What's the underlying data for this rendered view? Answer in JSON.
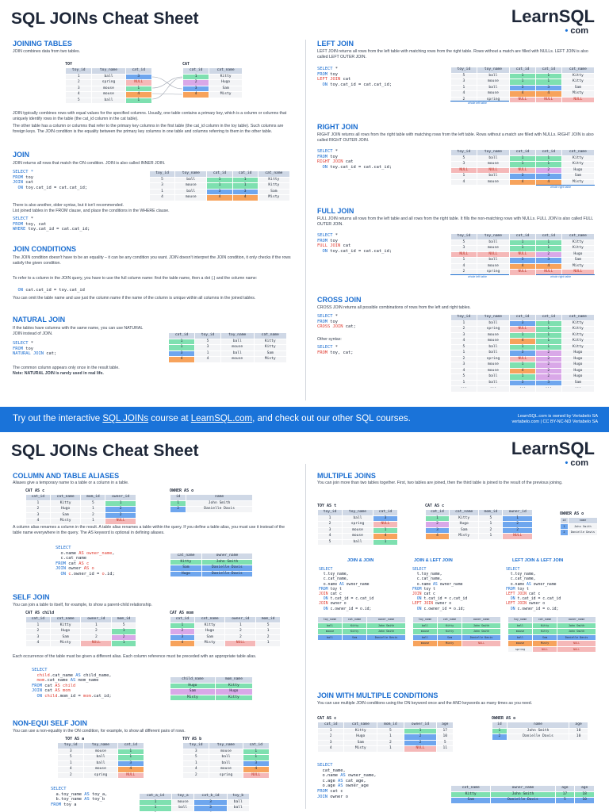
{
  "sheet1": {
    "title": "SQL JOINs Cheat Sheet",
    "logo_name": "LearnSQL",
    "logo_dom": "com",
    "joining_tables": {
      "heading": "JOINING TABLES",
      "intro": "JOIN combines data from two tables.",
      "toy_label": "TOY",
      "cat_label": "CAT",
      "toy_headers": [
        "toy_id",
        "toy_name",
        "cat_id"
      ],
      "toy_rows": [
        [
          "1",
          "ball",
          "3"
        ],
        [
          "2",
          "spring",
          "NULL"
        ],
        [
          "3",
          "mouse",
          "1"
        ],
        [
          "4",
          "mouse",
          "4"
        ],
        [
          "5",
          "ball",
          "1"
        ]
      ],
      "cat_headers": [
        "cat_id",
        "cat_name"
      ],
      "cat_rows": [
        [
          "1",
          "Kitty"
        ],
        [
          "2",
          "Hugo"
        ],
        [
          "3",
          "Sam"
        ],
        [
          "4",
          "Misty"
        ]
      ],
      "para1": "JOIN typically combines rows with equal values for the specified columns. Usually, one table contains a primary key, which is a column or columns that uniquely identify rows in the table (the cat_id column in the cat table).",
      "para2": "The other table has a column or columns that refer to the primary key columns in the first table (the cat_id column in the toy table). Such columns are foreign keys. The JOIN condition is the equality between the primary key columns in one table and columns referring to them in the other table."
    },
    "join": {
      "heading": "JOIN",
      "desc": "JOIN returns all rows that match the ON condition. JOIN is also called INNER JOIN.",
      "code": [
        "SELECT *",
        "FROM toy",
        "JOIN cat",
        "  ON toy.cat_id = cat.cat_id;"
      ],
      "headers": [
        "toy_id",
        "toy_name",
        "cat_id",
        "cat_id",
        "cat_name"
      ],
      "rows": [
        [
          "5",
          "ball",
          "1",
          "1",
          "Kitty"
        ],
        [
          "3",
          "mouse",
          "1",
          "1",
          "Kitty"
        ],
        [
          "1",
          "ball",
          "3",
          "3",
          "Sam"
        ],
        [
          "4",
          "mouse",
          "4",
          "4",
          "Misty"
        ]
      ],
      "alt1": "There is also another, older syntax, but it isn't recommended.",
      "alt2": "List joined tables in the FROM clause, and place the conditions in the WHERE clause.",
      "code2": [
        "SELECT *",
        "FROM toy, cat",
        "WHERE toy.cat_id = cat.cat_id;"
      ]
    },
    "conditions": {
      "heading": "JOIN CONDITIONS",
      "p1": "The JOIN condition doesn't have to be an equality – it can be any condition you want. JOIN doesn't interpret the JOIN condition, it only checks if the rows satisfy the given condition.",
      "p2": "To refer to a column in the JOIN query, you have to use the full column name: first the table name, then a dot (.) and the column name:",
      "code": "  ON cat.cat_id = toy.cat_id",
      "p3": "You can omit the table name and use just the column name if the name of the column is unique within all columns in the joined tables."
    },
    "natural": {
      "heading": "NATURAL JOIN",
      "p1": "If the tables have columns with the same name, you can use NATURAL JOIN instead of JOIN.",
      "code": [
        "SELECT *",
        "FROM toy",
        "NATURAL JOIN cat;"
      ],
      "headers": [
        "cat_id",
        "toy_id",
        "toy_name",
        "cat_name"
      ],
      "rows": [
        [
          "1",
          "5",
          "ball",
          "Kitty"
        ],
        [
          "1",
          "3",
          "mouse",
          "Kitty"
        ],
        [
          "3",
          "1",
          "ball",
          "Sam"
        ],
        [
          "4",
          "4",
          "mouse",
          "Misty"
        ]
      ],
      "p2": "The common column appears only once in the result table.",
      "note": "Note: NATURAL JOIN is rarely used in real life."
    },
    "left": {
      "heading": "LEFT JOIN",
      "desc": "LEFT JOIN returns all rows from the left table with matching rows from the right table. Rows without a match are filled with NULLs. LEFT JOIN is also called LEFT OUTER JOIN.",
      "code": [
        "SELECT *",
        "FROM toy",
        "LEFT JOIN cat",
        "  ON toy.cat_id = cat.cat_id;"
      ],
      "headers": [
        "toy_id",
        "toy_name",
        "cat_id",
        "cat_id",
        "cat_name"
      ],
      "rows": [
        [
          "5",
          "ball",
          "1",
          "1",
          "Kitty"
        ],
        [
          "3",
          "mouse",
          "1",
          "1",
          "Kitty"
        ],
        [
          "1",
          "ball",
          "3",
          "3",
          "Sam"
        ],
        [
          "4",
          "mouse",
          "4",
          "4",
          "Misty"
        ],
        [
          "2",
          "spring",
          "NULL",
          "NULL",
          "NULL"
        ]
      ],
      "label": "whole left table"
    },
    "right": {
      "heading": "RIGHT JOIN",
      "desc": "RIGHT JOIN returns all rows from the right table with matching rows from the left table. Rows without a match are filled with NULLs. RIGHT JOIN is also called RIGHT OUTER JOIN.",
      "code": [
        "SELECT *",
        "FROM toy",
        "RIGHT JOIN cat",
        "  ON toy.cat_id = cat.cat_id;"
      ],
      "headers": [
        "toy_id",
        "toy_name",
        "cat_id",
        "cat_id",
        "cat_name"
      ],
      "rows": [
        [
          "5",
          "ball",
          "1",
          "1",
          "Kitty"
        ],
        [
          "3",
          "mouse",
          "1",
          "1",
          "Kitty"
        ],
        [
          "NULL",
          "NULL",
          "NULL",
          "2",
          "Hugo"
        ],
        [
          "1",
          "ball",
          "3",
          "3",
          "Sam"
        ],
        [
          "4",
          "mouse",
          "4",
          "4",
          "Misty"
        ]
      ],
      "label": "whole right table"
    },
    "full": {
      "heading": "FULL JOIN",
      "desc": "FULL JOIN returns all rows from the left table and all rows from the right table. It fills the non-matching rows with NULLs. FULL JOIN is also called FULL OUTER JOIN.",
      "code": [
        "SELECT *",
        "FROM toy",
        "FULL JOIN cat",
        "  ON toy.cat_id = cat.cat_id;"
      ],
      "headers": [
        "toy_id",
        "toy_name",
        "cat_id",
        "cat_id",
        "cat_name"
      ],
      "rows": [
        [
          "5",
          "ball",
          "1",
          "1",
          "Kitty"
        ],
        [
          "3",
          "mouse",
          "1",
          "1",
          "Kitty"
        ],
        [
          "NULL",
          "NULL",
          "NULL",
          "2",
          "Hugo"
        ],
        [
          "1",
          "ball",
          "3",
          "3",
          "Sam"
        ],
        [
          "4",
          "mouse",
          "4",
          "4",
          "Misty"
        ],
        [
          "2",
          "spring",
          "NULL",
          "NULL",
          "NULL"
        ]
      ],
      "label_left": "whole left table",
      "label_right": "whole right table"
    },
    "cross": {
      "heading": "CROSS JOIN",
      "desc": "CROSS JOIN returns all possible combinations of rows from the left and right tables.",
      "code": [
        "SELECT *",
        "FROM toy",
        "CROSS JOIN cat;"
      ],
      "other": "Other syntax:",
      "code2": [
        "SELECT *",
        "FROM toy, cat;"
      ],
      "headers": [
        "toy_id",
        "toy_name",
        "cat_id",
        "cat_id",
        "cat_name"
      ],
      "rows": [
        [
          "1",
          "ball",
          "3",
          "1",
          "Kitty"
        ],
        [
          "2",
          "spring",
          "NULL",
          "1",
          "Kitty"
        ],
        [
          "3",
          "mouse",
          "1",
          "1",
          "Kitty"
        ],
        [
          "4",
          "mouse",
          "4",
          "1",
          "Kitty"
        ],
        [
          "5",
          "ball",
          "1",
          "1",
          "Kitty"
        ],
        [
          "1",
          "ball",
          "3",
          "2",
          "Hugo"
        ],
        [
          "2",
          "spring",
          "NULL",
          "2",
          "Hugo"
        ],
        [
          "3",
          "mouse",
          "1",
          "2",
          "Hugo"
        ],
        [
          "4",
          "mouse",
          "4",
          "2",
          "Hugo"
        ],
        [
          "5",
          "ball",
          "1",
          "2",
          "Hugo"
        ],
        [
          "1",
          "ball",
          "3",
          "3",
          "Sam"
        ],
        [
          "···",
          "···",
          "···",
          "···",
          "···"
        ]
      ]
    }
  },
  "banner": {
    "pre": "Try out the interactive ",
    "link1": "SQL JOINs",
    "mid": " course at ",
    "link2": "LearnSQL.com",
    "post": ", and check out our other SQL courses.",
    "right1": "LearnSQL.com is owned by Vertabelo SA",
    "right2": "vertabelo.com | CC BY-NC-ND Vertabelo SA"
  },
  "sheet2": {
    "title": "SQL JOINs Cheat Sheet",
    "logo_name": "LearnSQL",
    "logo_dom": "com",
    "aliases": {
      "heading": "COLUMN AND TABLE ALIASES",
      "desc": "Aliases give a temporary name to a table or a column in a table.",
      "cat_label": "CAT AS c",
      "owner_label": "OWNER AS o",
      "cat_headers": [
        "cat_id",
        "cat_name",
        "mom_id",
        "owner_id"
      ],
      "cat_rows": [
        [
          "1",
          "Kitty",
          "5",
          "1"
        ],
        [
          "2",
          "Hugo",
          "1",
          "2"
        ],
        [
          "3",
          "Sam",
          "2",
          "2"
        ],
        [
          "4",
          "Misty",
          "1",
          "NULL"
        ]
      ],
      "owner_headers": [
        "id",
        "name"
      ],
      "owner_rows": [
        [
          "1",
          "John Smith"
        ],
        [
          "2",
          "Danielle Davis"
        ]
      ],
      "p1": "A column alias renames a column in the result. A table alias renames a table within the query. If you define a table alias, you must use it instead of the table name everywhere in the query. The AS keyword is optional in defining aliases.",
      "code": [
        "SELECT",
        "  o.name AS owner_name,",
        "  c.cat_name",
        "FROM cat AS c",
        "JOIN owner AS o",
        "  ON c.owner_id = o.id;"
      ],
      "res_headers": [
        "cat_name",
        "owner_name"
      ],
      "res_rows": [
        [
          "Kitty",
          "John Smith"
        ],
        [
          "Sam",
          "Danielle Davis"
        ],
        [
          "Hugo",
          "Danielle Davis"
        ]
      ]
    },
    "self": {
      "heading": "SELF JOIN",
      "desc": "You can join a table to itself, for example, to show a parent-child relationship.",
      "child_label": "CAT AS child",
      "mom_label": "CAT AS mom",
      "headers": [
        "cat_id",
        "cat_name",
        "owner_id",
        "mom_id"
      ],
      "child_rows": [
        [
          "1",
          "Kitty",
          "1",
          "5"
        ],
        [
          "2",
          "Hugo",
          "2",
          "1"
        ],
        [
          "3",
          "Sam",
          "2",
          "2"
        ],
        [
          "4",
          "Misty",
          "NULL",
          "1"
        ]
      ],
      "mom_rows": [
        [
          "1",
          "Kitty",
          "1",
          "5"
        ],
        [
          "2",
          "Hugo",
          "2",
          "1"
        ],
        [
          "3",
          "Sam",
          "2",
          "2"
        ],
        [
          "4",
          "Misty",
          "NULL",
          "1"
        ]
      ],
      "p1": "Each occurrence of the table must be given a different alias. Each column reference must be preceded with an appropriate table alias.",
      "code": [
        "SELECT",
        "  child.cat_name AS child_name,",
        "  mom.cat_name AS mom_name",
        "FROM cat AS child",
        "JOIN cat AS mom",
        "  ON child.mom_id = mom.cat_id;"
      ],
      "res_headers": [
        "child_name",
        "mom_name"
      ],
      "res_rows": [
        [
          "Hugo",
          "Kitty"
        ],
        [
          "Sam",
          "Hugo"
        ],
        [
          "Misty",
          "Kitty"
        ]
      ]
    },
    "nonequi": {
      "heading": "NON-EQUI SELF JOIN",
      "desc": "You can use a non-equality in the ON condition, for example, to show all different pairs of rows.",
      "a_label": "TOY AS a",
      "b_label": "TOY AS b",
      "headers": [
        "toy_id",
        "toy_name",
        "cat_id"
      ],
      "a_rows": [
        [
          "3",
          "mouse",
          "1"
        ],
        [
          "5",
          "ball",
          "1"
        ],
        [
          "1",
          "ball",
          "3"
        ],
        [
          "4",
          "mouse",
          "4"
        ],
        [
          "2",
          "spring",
          "NULL"
        ]
      ],
      "b_rows": [
        [
          "3",
          "mouse",
          "1"
        ],
        [
          "5",
          "ball",
          "1"
        ],
        [
          "1",
          "ball",
          "3"
        ],
        [
          "4",
          "mouse",
          "4"
        ],
        [
          "2",
          "spring",
          "NULL"
        ]
      ],
      "code": [
        "SELECT",
        "  a.toy_name AS toy_a,",
        "  b.toy_name AS toy_b",
        "FROM toy a"
      ],
      "res_headers": [
        "cat_a_id",
        "toy_a",
        "cat_b_id",
        "toy_b"
      ],
      "res_rows": [
        [
          "1",
          "mouse",
          "3",
          "ball"
        ],
        [
          "1",
          "ball",
          "3",
          "ball"
        ],
        [
          "1",
          "mouse",
          "4",
          "mouse"
        ]
      ]
    },
    "multiple": {
      "heading": "MULTIPLE JOINS",
      "desc": "You can join more than two tables together. First, two tables are joined, then the third table is joined to the result of the previous joining.",
      "toy_label": "TOY AS t",
      "cat_label": "CAT AS c",
      "owner_label": "OWNER AS o",
      "toy_headers": [
        "toy_id",
        "toy_name",
        "cat_id"
      ],
      "toy_rows": [
        [
          "1",
          "ball",
          "3"
        ],
        [
          "2",
          "spring",
          "NULL"
        ],
        [
          "3",
          "mouse",
          "1"
        ],
        [
          "4",
          "mouse",
          "4"
        ],
        [
          "5",
          "ball",
          "1"
        ]
      ],
      "cat_headers": [
        "cat_id",
        "cat_name",
        "mom_id",
        "owner_id"
      ],
      "cat_rows": [
        [
          "1",
          "Kitty",
          "5",
          "1"
        ],
        [
          "2",
          "Hugo",
          "1",
          "2"
        ],
        [
          "3",
          "Sam",
          "2",
          "2"
        ],
        [
          "4",
          "Misty",
          "1",
          "NULL"
        ]
      ],
      "owner_headers": [
        "id",
        "name"
      ],
      "owner_rows": [
        [
          "1",
          "John Smith"
        ],
        [
          "2",
          "Danielle Davis"
        ]
      ],
      "col1_title": "JOIN & JOIN",
      "col2_title": "JOIN & LEFT JOIN",
      "col3_title": "LEFT JOIN & LEFT JOIN",
      "col1_code": [
        "SELECT",
        "  t.toy_name,",
        "  c.cat_name,",
        "  o.name AS owner_name",
        "FROM toy t",
        "JOIN cat c",
        "  ON t.cat_id = c.cat_id",
        "JOIN owner o",
        "  ON c.owner_id = o.id;"
      ],
      "col2_code": [
        "SELECT",
        "  t.toy_name,",
        "  c.cat_name,",
        "  o.name AS owner_name",
        "FROM toy t",
        "JOIN cat c",
        "  ON t.cat_id = c.cat_id",
        "LEFT JOIN owner o",
        "  ON c.owner_id = o.id;"
      ],
      "col3_code": [
        "SELECT",
        "  t.toy_name,",
        "  c.cat_name,",
        "  o.name AS owner_name",
        "FROM toy t",
        "LEFT JOIN cat c",
        "  ON t.cat_id = c.cat_id",
        "LEFT JOIN owner o",
        "  ON c.owner_id = o.id;"
      ],
      "res_headers": [
        "toy_name",
        "cat_name",
        "owner_name"
      ],
      "res1": [
        [
          "ball",
          "Kitty",
          "John Smith"
        ],
        [
          "mouse",
          "Kitty",
          "John Smith"
        ],
        [
          "ball",
          "Sam",
          "Danielle Davis"
        ]
      ],
      "res2": [
        [
          "ball",
          "Kitty",
          "John Smith"
        ],
        [
          "mouse",
          "Kitty",
          "John Smith"
        ],
        [
          "ball",
          "Sam",
          "Danielle Davis"
        ],
        [
          "mouse",
          "Misty",
          "NULL"
        ]
      ],
      "res3": [
        [
          "ball",
          "Kitty",
          "John Smith"
        ],
        [
          "mouse",
          "Kitty",
          "John Smith"
        ],
        [
          "ball",
          "Sam",
          "Danielle Davis"
        ],
        [
          "mouse",
          "Misty",
          "NULL"
        ],
        [
          "spring",
          "NULL",
          "NULL"
        ]
      ]
    },
    "multicond": {
      "heading": "JOIN WITH MULTIPLE CONDITIONS",
      "desc": "You can use multiple JOIN conditions using the ON keyword once and the AND keywords as many times as you need.",
      "cat_label": "CAT AS c",
      "owner_label": "OWNER AS o",
      "cat_headers": [
        "cat_id",
        "cat_name",
        "mom_id",
        "owner_id",
        "age"
      ],
      "cat_rows": [
        [
          "1",
          "Kitty",
          "5",
          "1",
          "17"
        ],
        [
          "2",
          "Hugo",
          "1",
          "2",
          "10"
        ],
        [
          "3",
          "Sam",
          "2",
          "2",
          "5"
        ],
        [
          "4",
          "Misty",
          "1",
          "NULL",
          "11"
        ]
      ],
      "owner_headers": [
        "id",
        "name",
        "age"
      ],
      "owner_rows": [
        [
          "1",
          "John Smith",
          "18"
        ],
        [
          "2",
          "Danielle Davis",
          "10"
        ]
      ],
      "code": [
        "SELECT",
        "  cat_name,",
        "  o.name AS owner_name,",
        "  c.age AS cat_age,",
        "  o.age AS owner_age",
        "FROM cat c",
        "JOIN owner o"
      ],
      "res_headers": [
        "cat_name",
        "owner_name",
        "age",
        "age"
      ],
      "res_rows": [
        [
          "Kitty",
          "John Smith",
          "17",
          "18"
        ],
        [
          "Sam",
          "Danielle Davis",
          "5",
          "10"
        ]
      ]
    }
  }
}
